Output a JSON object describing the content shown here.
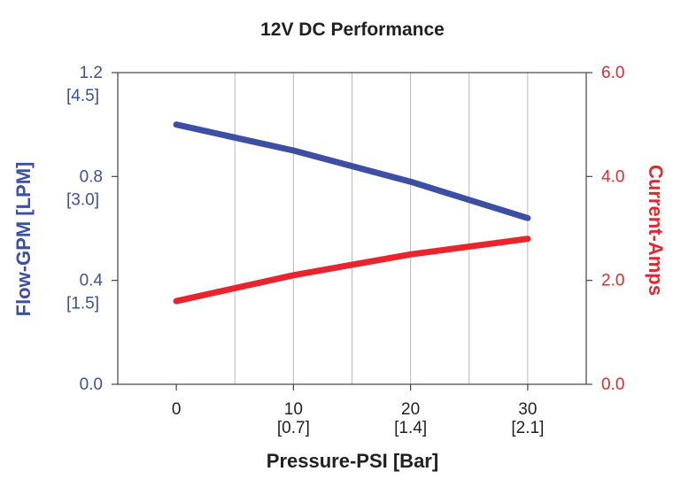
{
  "chart_data": {
    "type": "line",
    "title": "12V DC Performance",
    "xlabel": "Pressure-PSI [Bar]",
    "ylabel_left": "Flow-GPM [LPM]",
    "ylabel_right": "Current-Amps",
    "x_ticks": [
      {
        "value": 0,
        "label": "0",
        "sublabel": ""
      },
      {
        "value": 10,
        "label": "10",
        "sublabel": "[0.7]"
      },
      {
        "value": 20,
        "label": "20",
        "sublabel": "[1.4]"
      },
      {
        "value": 30,
        "label": "30",
        "sublabel": "[2.1]"
      }
    ],
    "left_ticks": [
      {
        "value": 0.0,
        "label": "0.0",
        "sublabel": ""
      },
      {
        "value": 0.4,
        "label": "0.4",
        "sublabel": "[1.5]"
      },
      {
        "value": 0.8,
        "label": "0.8",
        "sublabel": "[3.0]"
      },
      {
        "value": 1.2,
        "label": "1.2",
        "sublabel": "[4.5]"
      }
    ],
    "right_ticks": [
      {
        "value": 0.0,
        "label": "0.0"
      },
      {
        "value": 2.0,
        "label": "2.0"
      },
      {
        "value": 4.0,
        "label": "4.0"
      },
      {
        "value": 6.0,
        "label": "6.0"
      }
    ],
    "xlim": [
      -5,
      35
    ],
    "ylim_left": [
      0,
      1.2
    ],
    "ylim_right": [
      0,
      6.0
    ],
    "grid": true,
    "x_gridlines": [
      5,
      10,
      15,
      20,
      25,
      30
    ],
    "series": [
      {
        "axis": "left",
        "color": "#3d4fa3",
        "x": [
          0,
          10,
          20,
          30
        ],
        "values": [
          1.0,
          0.9,
          0.78,
          0.64
        ]
      },
      {
        "axis": "right",
        "color": "#e8252d",
        "x": [
          0,
          10,
          20,
          30
        ],
        "values": [
          1.6,
          2.1,
          2.5,
          2.8
        ]
      }
    ],
    "colors": {
      "left_axis": "#3d4fa3",
      "right_axis": "#e8252d",
      "text": "#231f20",
      "grid": "#b8b8b8",
      "frame": "#444444"
    }
  }
}
